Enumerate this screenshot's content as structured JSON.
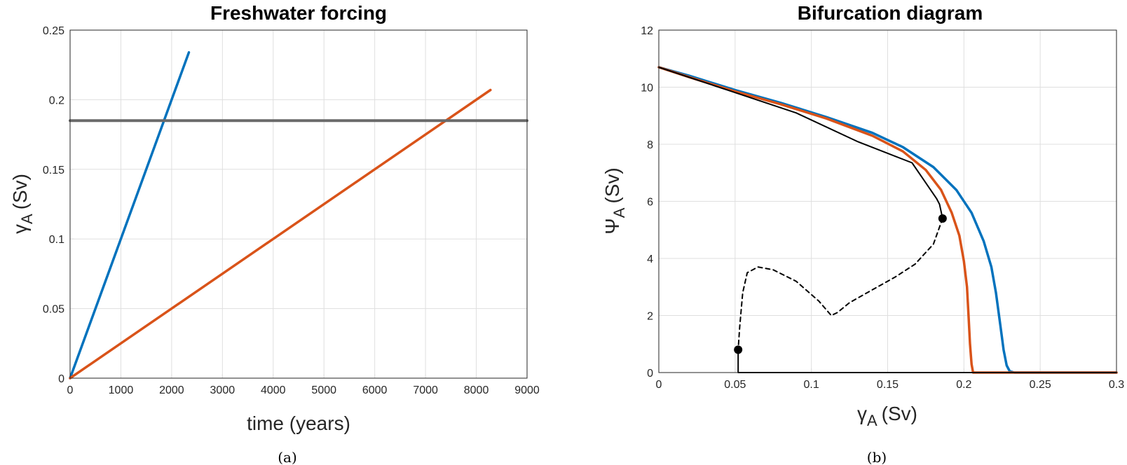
{
  "captions": {
    "a": "(a)",
    "b": "(b)"
  },
  "chart_data": [
    {
      "type": "line",
      "title": "Freshwater forcing",
      "xlabel": "time (years)",
      "ylabel_main": "γ",
      "ylabel_sub": "A",
      "ylabel_unit": "(Sv)",
      "xlim": [
        0,
        9000
      ],
      "ylim": [
        0,
        0.25
      ],
      "grid": true,
      "xticks": [
        "0",
        "1000",
        "2000",
        "3000",
        "4000",
        "5000",
        "6000",
        "7000",
        "8000",
        "9000"
      ],
      "xtick_values": [
        0,
        1000,
        2000,
        3000,
        4000,
        5000,
        6000,
        7000,
        8000,
        9000
      ],
      "yticks": [
        "0",
        "0.05",
        "0.1",
        "0.15",
        "0.2",
        "0.25"
      ],
      "ytick_values": [
        0,
        0.05,
        0.1,
        0.15,
        0.2,
        0.25
      ],
      "series": [
        {
          "color": "#0072bd",
          "width": 3.5,
          "x": [
            0,
            2340
          ],
          "y": [
            0,
            0.234
          ]
        },
        {
          "color": "#d95319",
          "width": 3.5,
          "x": [
            0,
            8280
          ],
          "y": [
            0,
            0.207
          ]
        },
        {
          "color": "#6a6a6a",
          "width": 4,
          "x": [
            0,
            9000
          ],
          "y": [
            0.185,
            0.185
          ]
        }
      ]
    },
    {
      "type": "line",
      "title": "Bifurcation diagram",
      "xlabel_main": "γ",
      "xlabel_sub": "A",
      "xlabel_unit": "(Sv)",
      "ylabel_main": "Ψ",
      "ylabel_sub": "A",
      "ylabel_unit": "(Sv)",
      "xlim": [
        0,
        0.3
      ],
      "ylim": [
        0,
        12
      ],
      "grid": true,
      "xticks": [
        "0",
        "0.05",
        "0.1",
        "0.15",
        "0.2",
        "0.25",
        "0.3"
      ],
      "xtick_values": [
        0,
        0.05,
        0.1,
        0.15,
        0.2,
        0.25,
        0.3
      ],
      "yticks": [
        "0",
        "2",
        "4",
        "6",
        "8",
        "10",
        "12"
      ],
      "ytick_values": [
        0,
        2,
        4,
        6,
        8,
        10,
        12
      ],
      "series": [
        {
          "color": "#0072bd",
          "width": 3.5,
          "dash": "",
          "x": [
            0,
            0.02,
            0.05,
            0.08,
            0.11,
            0.14,
            0.16,
            0.18,
            0.195,
            0.205,
            0.213,
            0.218,
            0.221,
            0.224,
            0.226,
            0.228,
            0.23,
            0.233,
            0.3
          ],
          "y": [
            10.7,
            10.4,
            9.9,
            9.45,
            8.95,
            8.4,
            7.9,
            7.2,
            6.4,
            5.6,
            4.6,
            3.7,
            2.8,
            1.6,
            0.8,
            0.25,
            0.05,
            0,
            0
          ]
        },
        {
          "color": "#d95319",
          "width": 3.5,
          "dash": "",
          "x": [
            0,
            0.02,
            0.05,
            0.08,
            0.11,
            0.14,
            0.16,
            0.175,
            0.185,
            0.192,
            0.197,
            0.2,
            0.202,
            0.203,
            0.204,
            0.205,
            0.206,
            0.208,
            0.3
          ],
          "y": [
            10.7,
            10.35,
            9.85,
            9.4,
            8.9,
            8.3,
            7.75,
            7.1,
            6.4,
            5.6,
            4.8,
            3.9,
            3.0,
            2.0,
            1.0,
            0.3,
            0,
            0,
            0
          ]
        },
        {
          "color": "#000000",
          "width": 2,
          "dash": "",
          "x": [
            0,
            0.045,
            0.09,
            0.13,
            0.166,
            0.182,
            0.184,
            0.186
          ],
          "y": [
            10.7,
            9.9,
            9.1,
            8.1,
            7.35,
            6.1,
            5.9,
            5.4
          ]
        },
        {
          "color": "#000000",
          "width": 2,
          "dash": "6,5",
          "x": [
            0.186,
            0.18,
            0.168,
            0.155,
            0.14,
            0.125,
            0.117,
            0.113,
            0.105,
            0.09,
            0.075,
            0.065,
            0.058,
            0.055,
            0.053,
            0.052
          ],
          "y": [
            5.4,
            4.5,
            3.8,
            3.35,
            2.9,
            2.45,
            2.1,
            2.0,
            2.5,
            3.2,
            3.6,
            3.7,
            3.5,
            2.8,
            1.6,
            0.8
          ]
        },
        {
          "color": "#000000",
          "width": 2,
          "dash": "",
          "x": [
            0.052,
            0.052,
            0.3
          ],
          "y": [
            0.8,
            0,
            0
          ]
        }
      ],
      "markers": [
        {
          "x": 0.052,
          "y": 0.8
        },
        {
          "x": 0.186,
          "y": 5.4
        }
      ]
    }
  ]
}
